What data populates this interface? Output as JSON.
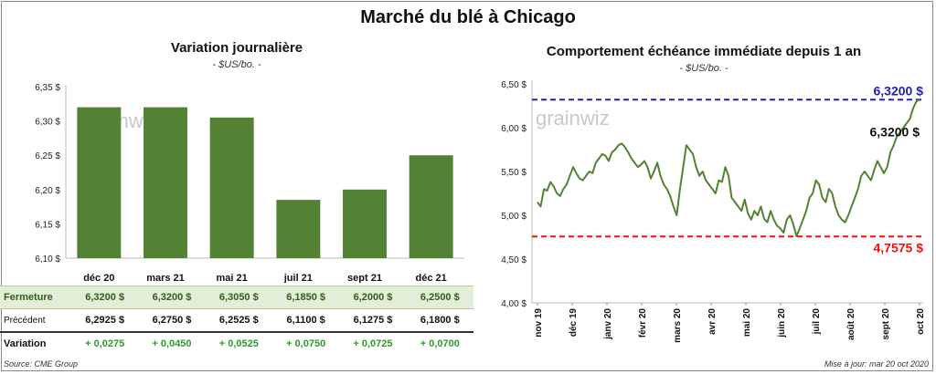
{
  "title": "Marché du blé à Chicago",
  "footer": {
    "source": "Source: CME Group",
    "updated": "Mise à jour: mar 20 oct 2020"
  },
  "watermark": "grainwiz",
  "colors": {
    "bar": "#548235",
    "line": "#548235",
    "high_line": "#2222aa",
    "low_line": "#ee1111",
    "variation_text": "#2e9a2e",
    "close_row_bg": "#e3eed8"
  },
  "table": {
    "rows": [
      {
        "label": "Fermeture",
        "values": [
          "6,3200  $",
          "6,3200  $",
          "6,3050  $",
          "6,1850  $",
          "6,2000  $",
          "6,2500  $"
        ]
      },
      {
        "label": "Précédent",
        "values": [
          "6,2925  $",
          "6,2750  $",
          "6,2525  $",
          "6,1100  $",
          "6,1275  $",
          "6,1800  $"
        ]
      },
      {
        "label": "Variation",
        "values": [
          "+ 0,0275",
          "+ 0,0450",
          "+ 0,0525",
          "+ 0,0750",
          "+ 0,0725",
          "+ 0,0700"
        ]
      }
    ]
  },
  "chart_data": [
    {
      "type": "bar",
      "title": "Variation  journalière",
      "subtitle": "- $US/bo. -",
      "categories": [
        "déc 20",
        "mars 21",
        "mai 21",
        "juil 21",
        "sept 21",
        "déc 21"
      ],
      "values": [
        6.32,
        6.32,
        6.305,
        6.185,
        6.2,
        6.25
      ],
      "ylim": [
        6.1,
        6.35
      ],
      "yticks": [
        "6,10 $",
        "6,15 $",
        "6,20 $",
        "6,25 $",
        "6,30 $",
        "6,35 $"
      ],
      "ytick_values": [
        6.1,
        6.15,
        6.2,
        6.25,
        6.3,
        6.35
      ],
      "grid": false
    },
    {
      "type": "line",
      "title": "Comportement  échéance immédiate depuis 1 an",
      "subtitle": "- $US/bo. -",
      "ylim": [
        4.0,
        6.5
      ],
      "yticks": [
        "4,00 $",
        "4,50 $",
        "5,00 $",
        "5,50 $",
        "6,00 $",
        "6,50 $"
      ],
      "ytick_values": [
        4.0,
        4.5,
        5.0,
        5.5,
        6.0,
        6.5
      ],
      "xticks": [
        "nov 19",
        "déc 19",
        "janv 20",
        "févr 20",
        "mars 20",
        "avr 20",
        "mai 20",
        "juin 20",
        "juil 20",
        "août 20",
        "sept 20",
        "oct 20"
      ],
      "grid": false,
      "reference_lines": [
        {
          "label": "6,3200 $",
          "value": 6.32,
          "style": "dashed",
          "color": "#2222aa"
        },
        {
          "label": "4,7575 $",
          "value": 4.7575,
          "style": "dashed",
          "color": "#ee1111"
        }
      ],
      "last_value_label": "6,3200 $",
      "series": [
        {
          "values": [
            5.15,
            5.1,
            5.3,
            5.28,
            5.38,
            5.33,
            5.25,
            5.22,
            5.3,
            5.35,
            5.45,
            5.55,
            5.48,
            5.42,
            5.4,
            5.45,
            5.5,
            5.48,
            5.6,
            5.65,
            5.7,
            5.68,
            5.62,
            5.72,
            5.75,
            5.8,
            5.82,
            5.78,
            5.72,
            5.65,
            5.6,
            5.55,
            5.58,
            5.62,
            5.55,
            5.42,
            5.5,
            5.6,
            5.45,
            5.35,
            5.3,
            5.22,
            5.1,
            5.0,
            5.3,
            5.55,
            5.8,
            5.75,
            5.7,
            5.55,
            5.45,
            5.5,
            5.4,
            5.35,
            5.3,
            5.25,
            5.4,
            5.38,
            5.55,
            5.45,
            5.2,
            5.15,
            5.1,
            5.05,
            5.18,
            5.02,
            4.95,
            5.05,
            5.0,
            5.1,
            4.96,
            4.92,
            5.05,
            4.95,
            4.88,
            4.85,
            4.8,
            4.95,
            5.0,
            4.9,
            4.76,
            4.85,
            4.95,
            5.05,
            5.2,
            5.25,
            5.4,
            5.35,
            5.2,
            5.15,
            5.3,
            5.25,
            5.1,
            5.0,
            4.95,
            4.92,
            5.0,
            5.1,
            5.2,
            5.3,
            5.45,
            5.5,
            5.45,
            5.4,
            5.52,
            5.62,
            5.55,
            5.48,
            5.55,
            5.72,
            5.8,
            5.9,
            5.95,
            6.0,
            6.05,
            6.1,
            6.22,
            6.3,
            6.32
          ]
        }
      ]
    }
  ]
}
